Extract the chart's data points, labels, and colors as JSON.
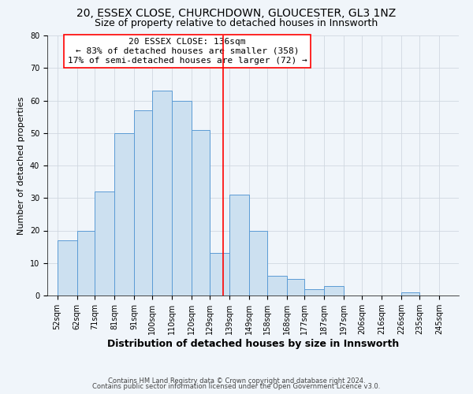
{
  "title1": "20, ESSEX CLOSE, CHURCHDOWN, GLOUCESTER, GL3 1NZ",
  "title2": "Size of property relative to detached houses in Innsworth",
  "xlabel": "Distribution of detached houses by size in Innsworth",
  "ylabel": "Number of detached properties",
  "bar_left_edges": [
    52,
    62,
    71,
    81,
    91,
    100,
    110,
    120,
    129,
    139,
    149,
    158,
    168,
    177,
    187,
    197,
    206,
    216,
    226,
    235
  ],
  "bar_heights": [
    17,
    20,
    32,
    50,
    57,
    63,
    60,
    51,
    13,
    31,
    20,
    6,
    5,
    2,
    3,
    0,
    0,
    0,
    1,
    0
  ],
  "bar_widths": [
    10,
    9,
    10,
    10,
    9,
    10,
    10,
    9,
    10,
    10,
    9,
    10,
    9,
    10,
    10,
    9,
    10,
    10,
    9,
    10
  ],
  "bar_color": "#cce0f0",
  "bar_edgecolor": "#5b9bd5",
  "vline_x": 136,
  "vline_color": "red",
  "xlim": [
    47,
    255
  ],
  "ylim": [
    0,
    80
  ],
  "yticks": [
    0,
    10,
    20,
    30,
    40,
    50,
    60,
    70,
    80
  ],
  "xtick_labels": [
    "52sqm",
    "62sqm",
    "71sqm",
    "81sqm",
    "91sqm",
    "100sqm",
    "110sqm",
    "120sqm",
    "129sqm",
    "139sqm",
    "149sqm",
    "158sqm",
    "168sqm",
    "177sqm",
    "187sqm",
    "197sqm",
    "206sqm",
    "216sqm",
    "226sqm",
    "235sqm",
    "245sqm"
  ],
  "xtick_positions": [
    52,
    62,
    71,
    81,
    91,
    100,
    110,
    120,
    129,
    139,
    149,
    158,
    168,
    177,
    187,
    197,
    206,
    216,
    226,
    235,
    245
  ],
  "annotation_title": "20 ESSEX CLOSE: 136sqm",
  "annotation_line1": "← 83% of detached houses are smaller (358)",
  "annotation_line2": "17% of semi-detached houses are larger (72) →",
  "grid_color": "#d0d8e0",
  "footer1": "Contains HM Land Registry data © Crown copyright and database right 2024.",
  "footer2": "Contains public sector information licensed under the Open Government Licence v3.0.",
  "bg_color": "#f0f5fa",
  "title1_fontsize": 10,
  "title2_fontsize": 9,
  "xlabel_fontsize": 9,
  "ylabel_fontsize": 8,
  "tick_fontsize": 7,
  "annotation_fontsize": 8,
  "footer_fontsize": 6
}
